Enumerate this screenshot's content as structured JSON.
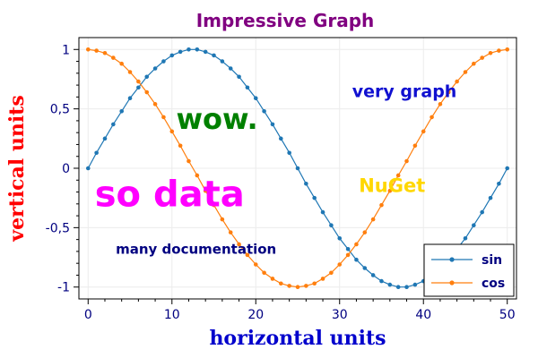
{
  "chart_data": {
    "type": "line",
    "title": "Impressive Graph",
    "xlabel": "horizontal units",
    "ylabel": "vertical units",
    "xlim": [
      -1.1,
      51.1
    ],
    "ylim": [
      -1.1,
      1.1
    ],
    "x_ticks": [
      0,
      10,
      20,
      30,
      40,
      50
    ],
    "x_tick_labels": [
      "0",
      "10",
      "20",
      "30",
      "40",
      "50"
    ],
    "y_ticks": [
      1,
      0.5,
      0,
      -0.5,
      -1
    ],
    "y_tick_labels": [
      "1",
      "0,5",
      "0",
      "-0,5",
      "-1"
    ],
    "grid": true,
    "legend_position": "bottom-right",
    "x": [
      0,
      1,
      2,
      3,
      4,
      5,
      6,
      7,
      8,
      9,
      10,
      11,
      12,
      13,
      14,
      15,
      16,
      17,
      18,
      19,
      20,
      21,
      22,
      23,
      24,
      25,
      26,
      27,
      28,
      29,
      30,
      31,
      32,
      33,
      34,
      35,
      36,
      37,
      38,
      39,
      40,
      41,
      42,
      43,
      44,
      45,
      46,
      47,
      48,
      49,
      50
    ],
    "series": [
      {
        "name": "sin",
        "color": "#1f77b4",
        "values": [
          0,
          0.13,
          0.25,
          0.37,
          0.48,
          0.59,
          0.68,
          0.77,
          0.84,
          0.9,
          0.95,
          0.98,
          1,
          1,
          0.98,
          0.95,
          0.9,
          0.84,
          0.77,
          0.68,
          0.59,
          0.48,
          0.37,
          0.25,
          0.13,
          0,
          -0.13,
          -0.25,
          -0.37,
          -0.48,
          -0.59,
          -0.68,
          -0.77,
          -0.84,
          -0.9,
          -0.95,
          -0.98,
          -1,
          -1,
          -0.98,
          -0.95,
          -0.9,
          -0.84,
          -0.77,
          -0.68,
          -0.59,
          -0.48,
          -0.37,
          -0.25,
          -0.13,
          0
        ]
      },
      {
        "name": "cos",
        "color": "#ff7f0e",
        "values": [
          1,
          0.99,
          0.97,
          0.93,
          0.88,
          0.81,
          0.73,
          0.64,
          0.54,
          0.43,
          0.31,
          0.19,
          0.06,
          -0.06,
          -0.19,
          -0.31,
          -0.43,
          -0.54,
          -0.64,
          -0.73,
          -0.81,
          -0.88,
          -0.93,
          -0.97,
          -0.99,
          -1,
          -0.99,
          -0.97,
          -0.93,
          -0.88,
          -0.81,
          -0.73,
          -0.64,
          -0.54,
          -0.43,
          -0.31,
          -0.19,
          -0.06,
          0.06,
          0.19,
          0.31,
          0.43,
          0.54,
          0.64,
          0.73,
          0.81,
          0.88,
          0.93,
          0.97,
          0.99,
          1
        ]
      }
    ],
    "annotations": [
      {
        "text": "very graph",
        "x": 31.5,
        "y": 0.6,
        "color": "#1010d0"
      },
      {
        "text": "wow.",
        "x": 10.5,
        "y": 0.33,
        "color": "#008000"
      },
      {
        "text": "NuGet",
        "x": 32.3,
        "y": -0.2,
        "color": "#ffd700"
      },
      {
        "text": "so data",
        "x": 0.8,
        "y": -0.32,
        "color": "#ff00ff"
      },
      {
        "text": "many documentation",
        "x": 3.3,
        "y": -0.72,
        "color": "#000080"
      }
    ]
  },
  "colors": {
    "title": "#800080",
    "xlabel": "#0000cc",
    "ylabel": "#ff0000",
    "ticks": "#000080",
    "axes": "#000000",
    "grid": "#ececec"
  }
}
